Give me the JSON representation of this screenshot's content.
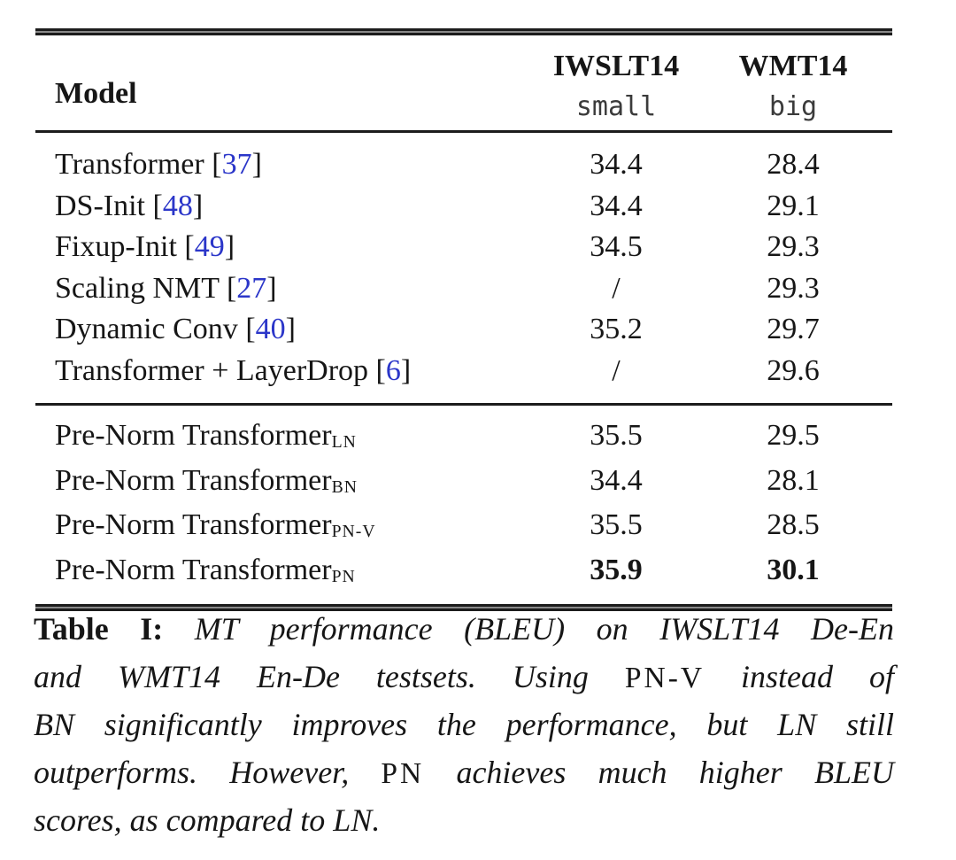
{
  "colors": {
    "ink": "#161616",
    "rule": "#1c1c1c",
    "citation": "#2b36c9",
    "header_sub": "#3b3b3b",
    "background": "#ffffff"
  },
  "table": {
    "header": {
      "model_label": "Model",
      "columns": [
        {
          "title": "IWSLT14",
          "subtitle": "small"
        },
        {
          "title": "WMT14",
          "subtitle": "big"
        }
      ]
    },
    "groups": [
      {
        "rows": [
          {
            "model": "Transformer",
            "citation": "37",
            "iwslt14_small": "34.4",
            "wmt14_big": "28.4"
          },
          {
            "model": "DS-Init",
            "citation": "48",
            "iwslt14_small": "34.4",
            "wmt14_big": "29.1"
          },
          {
            "model": "Fixup-Init",
            "citation": "49",
            "iwslt14_small": "34.5",
            "wmt14_big": "29.3"
          },
          {
            "model": "Scaling NMT",
            "citation": "27",
            "iwslt14_small": "/",
            "wmt14_big": "29.3"
          },
          {
            "model": "Dynamic Conv",
            "citation": "40",
            "iwslt14_small": "35.2",
            "wmt14_big": "29.7"
          },
          {
            "model": "Transformer + LayerDrop",
            "citation": "6",
            "iwslt14_small": "/",
            "wmt14_big": "29.6"
          }
        ]
      },
      {
        "rows": [
          {
            "model": "Pre-Norm Transformer",
            "subscript": "LN",
            "iwslt14_small": "35.5",
            "wmt14_big": "29.5"
          },
          {
            "model": "Pre-Norm Transformer",
            "subscript": "BN",
            "iwslt14_small": "34.4",
            "wmt14_big": "28.1"
          },
          {
            "model": "Pre-Norm Transformer",
            "subscript": "PN-V",
            "iwslt14_small": "35.5",
            "wmt14_big": "28.5"
          },
          {
            "model": "Pre-Norm Transformer",
            "subscript": "PN",
            "iwslt14_small": "35.9",
            "wmt14_big": "30.1",
            "bold": true
          }
        ]
      }
    ]
  },
  "caption": {
    "lines": [
      {
        "justify": true,
        "segments": [
          {
            "text": "Table I:",
            "style": "label"
          },
          {
            "text": " MT performance (BLEU) on IWSLT14 De-En",
            "style": "italic"
          }
        ]
      },
      {
        "justify": true,
        "segments": [
          {
            "text": "and WMT14 En-De testsets. Using ",
            "style": "italic"
          },
          {
            "text": "PN-V",
            "style": "smallcaps"
          },
          {
            "text": " instead of",
            "style": "italic"
          }
        ]
      },
      {
        "justify": true,
        "segments": [
          {
            "text": "BN significantly improves the performance, but LN still",
            "style": "italic"
          }
        ]
      },
      {
        "justify": true,
        "segments": [
          {
            "text": "outperforms. However, ",
            "style": "italic"
          },
          {
            "text": "PN",
            "style": "smallcaps"
          },
          {
            "text": " achieves much higher BLEU",
            "style": "italic"
          }
        ]
      },
      {
        "justify": false,
        "segments": [
          {
            "text": "scores, as compared to LN.",
            "style": "italic"
          }
        ]
      }
    ]
  }
}
